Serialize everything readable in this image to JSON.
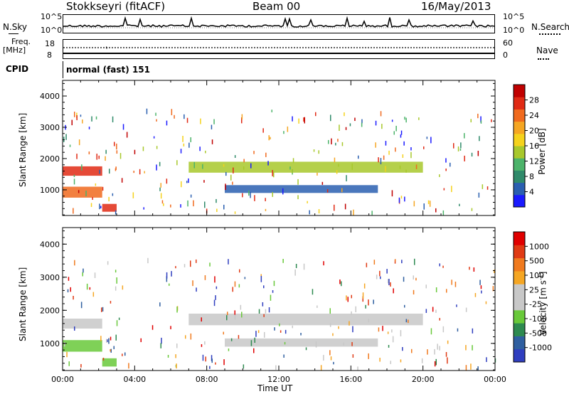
{
  "header": {
    "station": "Stokkseyri (fitACF)",
    "beam": "Beam 00",
    "date": "16/May/2013"
  },
  "top_panels": {
    "nsky_label": "N.Sky",
    "nsky_ticks": [
      "10^5",
      "10^0"
    ],
    "nsearch_label": "N.Search",
    "freq_label": "Freq.",
    "freq_unit": "[MHz]",
    "freq_ticks": [
      "18",
      "8"
    ],
    "nave_label": "Nave",
    "nave_ticks": [
      "60",
      "0"
    ],
    "cpid_label": "CPID",
    "cpid_value": "normal (fast) 151"
  },
  "chart_data": [
    {
      "type": "heatmap",
      "name": "power",
      "ylabel": "Slant Range [km]",
      "xlabel": "",
      "x_ticks": [
        "00:00",
        "04:00",
        "08:00",
        "12:00",
        "16:00",
        "20:00",
        "00:00"
      ],
      "y_ticks": [
        "1000",
        "2000",
        "3000",
        "4000"
      ],
      "xlim_hours": [
        0,
        24
      ],
      "ylim_km": [
        180,
        4500
      ],
      "colorbar": {
        "label": "Power [dB]",
        "ticks": [
          "4",
          "8",
          "12",
          "16",
          "20",
          "24",
          "28"
        ],
        "colors": [
          "#1a1aff",
          "#2a5fb0",
          "#2f8a6a",
          "#4cb36a",
          "#a8c82c",
          "#f5d21c",
          "#f5a623",
          "#f06a1e",
          "#e02a14",
          "#c00000"
        ]
      },
      "bands": [
        {
          "t0": 0.0,
          "t1": 2.2,
          "r0": 1450,
          "r1": 1750,
          "level": 8
        },
        {
          "t0": 0.0,
          "t1": 2.2,
          "r0": 750,
          "r1": 1100,
          "level": 7
        },
        {
          "t0": 2.2,
          "t1": 3.0,
          "r0": 300,
          "r1": 550,
          "level": 8
        },
        {
          "t0": 7.0,
          "t1": 20.0,
          "r0": 1550,
          "r1": 1900,
          "level": 4
        },
        {
          "t0": 9.0,
          "t1": 17.5,
          "r0": 900,
          "r1": 1150,
          "level": 1
        }
      ]
    },
    {
      "type": "heatmap",
      "name": "velocity",
      "ylabel": "Slant Range [km]",
      "xlabel": "Time UT",
      "x_ticks": [
        "00:00",
        "04:00",
        "08:00",
        "12:00",
        "16:00",
        "20:00",
        "00:00"
      ],
      "y_ticks": [
        "1000",
        "2000",
        "3000",
        "4000"
      ],
      "xlim_hours": [
        0,
        24
      ],
      "ylim_km": [
        180,
        4500
      ],
      "colorbar": {
        "label": "Velocity [m s",
        "label_sup": "-1",
        "label_end": "]",
        "ticks": [
          "1000",
          "500",
          "100",
          "25",
          "-25",
          "-100",
          "-500",
          "-1000"
        ],
        "colors": [
          "#2f3ebf",
          "#2f5fa0",
          "#2e8a50",
          "#69c93a",
          "#c8c8c8",
          "#c8c8c8",
          "#f5a623",
          "#f07a1e",
          "#e03a14",
          "#e00000"
        ]
      },
      "bands": [
        {
          "t0": 0.0,
          "t1": 2.2,
          "r0": 1450,
          "r1": 1750,
          "level": 4
        },
        {
          "t0": 0.0,
          "t1": 2.2,
          "r0": 750,
          "r1": 1100,
          "level": 3
        },
        {
          "t0": 2.2,
          "t1": 3.0,
          "r0": 300,
          "r1": 550,
          "level": 3
        },
        {
          "t0": 7.0,
          "t1": 20.0,
          "r0": 1550,
          "r1": 1900,
          "level": 4
        },
        {
          "t0": 9.0,
          "t1": 17.5,
          "r0": 900,
          "r1": 1150,
          "level": 5
        }
      ]
    }
  ]
}
